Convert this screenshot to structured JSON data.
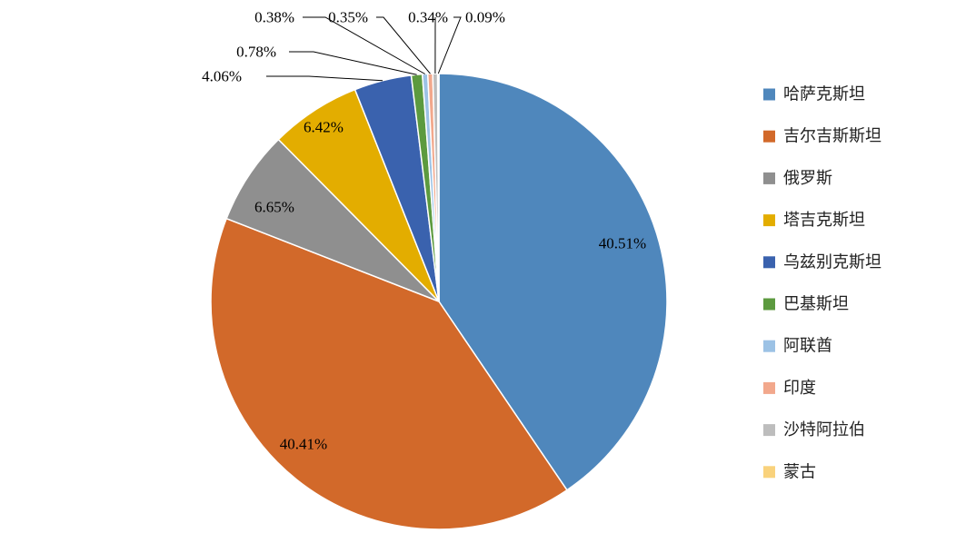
{
  "chart_data": {
    "type": "pie",
    "title": "",
    "start_angle_deg": 0,
    "direction": "clockwise",
    "legend_position": "right",
    "labels_format": "percent",
    "slices": [
      {
        "name": "哈萨克斯坦",
        "value": 40.51,
        "label": "40.51%",
        "color": "#4F87BC"
      },
      {
        "name": "吉尔吉斯斯坦",
        "value": 40.41,
        "label": "40.41%",
        "color": "#D2692A"
      },
      {
        "name": "俄罗斯",
        "value": 6.65,
        "label": "6.65%",
        "color": "#8F8F8F"
      },
      {
        "name": "塔吉克斯坦",
        "value": 6.42,
        "label": "6.42%",
        "color": "#E3AD00"
      },
      {
        "name": "乌兹别克斯坦",
        "value": 4.06,
        "label": "4.06%",
        "color": "#3A62AE"
      },
      {
        "name": "巴基斯坦",
        "value": 0.78,
        "label": "0.78%",
        "color": "#5C9A3F"
      },
      {
        "name": "阿联酋",
        "value": 0.38,
        "label": "0.38%",
        "color": "#9CC2E5"
      },
      {
        "name": "印度",
        "value": 0.35,
        "label": "0.35%",
        "color": "#F2A88C"
      },
      {
        "name": "沙特阿拉伯",
        "value": 0.34,
        "label": "0.34%",
        "color": "#BDBDBD"
      },
      {
        "name": "蒙古",
        "value": 0.09,
        "label": "0.09%",
        "color": "#F9D27C"
      }
    ]
  }
}
